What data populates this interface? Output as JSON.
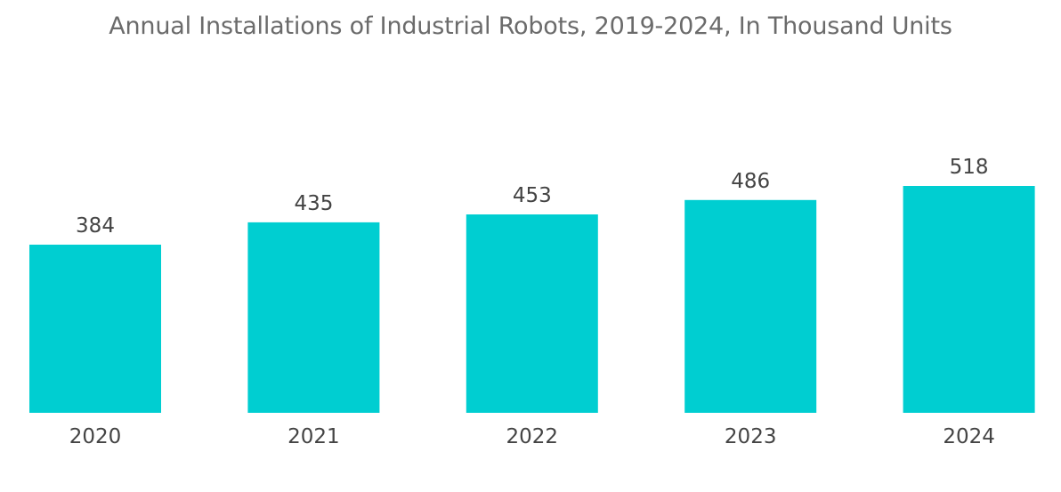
{
  "chart_data": {
    "type": "bar",
    "title": "Annual Installations of Industrial Robots, 2019-2024, In Thousand Units",
    "xlabel": "",
    "ylabel": "",
    "categories": [
      "2020",
      "2021",
      "2022",
      "2023",
      "2024"
    ],
    "values": [
      384,
      435,
      453,
      486,
      518
    ],
    "data_labels": [
      "384",
      "435",
      "453",
      "486",
      "518"
    ],
    "ylim": [
      0,
      518
    ],
    "grid": false,
    "legend": "none",
    "bar_color": "#00CED1"
  }
}
